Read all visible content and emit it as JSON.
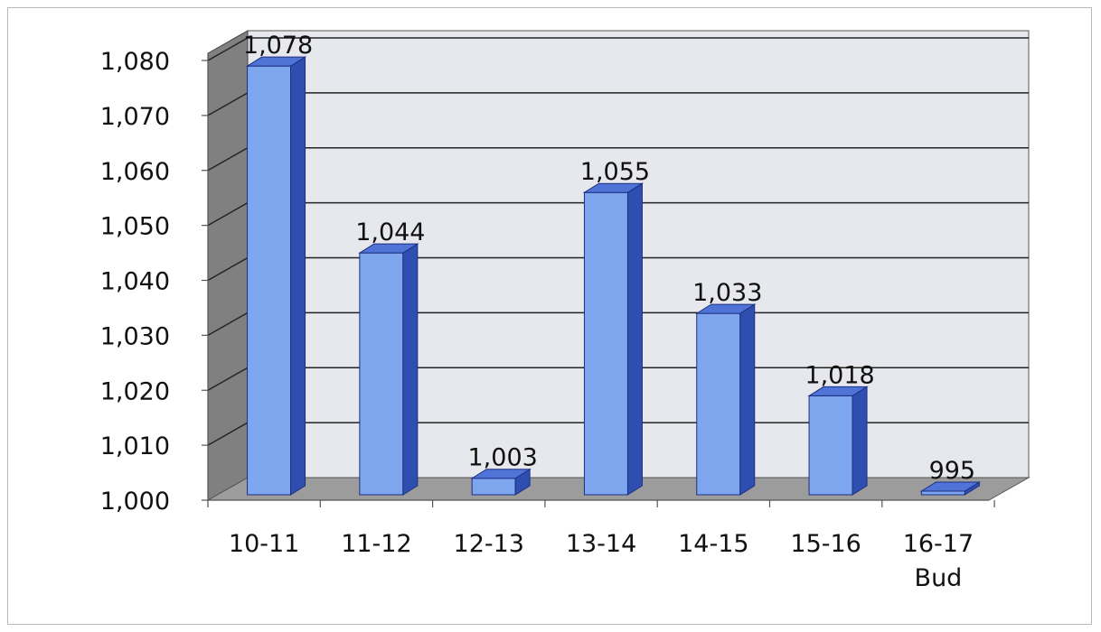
{
  "chart_data": {
    "type": "bar",
    "title": "",
    "xlabel": "",
    "ylabel": "",
    "categories": [
      [
        "10-11"
      ],
      [
        "11-12"
      ],
      [
        "12-13"
      ],
      [
        "13-14"
      ],
      [
        "14-15"
      ],
      [
        "15-16"
      ],
      [
        "16-17",
        "Bud"
      ]
    ],
    "values": [
      1078,
      1044,
      1003,
      1055,
      1033,
      1018,
      995
    ],
    "value_labels": [
      "1,078",
      "1,044",
      "1,003",
      "1,055",
      "1,033",
      "1,018",
      "995"
    ],
    "ylim": [
      1000,
      1080
    ],
    "yticks": [
      1000,
      1010,
      1020,
      1030,
      1040,
      1050,
      1060,
      1070,
      1080
    ],
    "ytick_labels": [
      "1,000",
      "1,010",
      "1,020",
      "1,030",
      "1,040",
      "1,050",
      "1,060",
      "1,070",
      "1,080"
    ],
    "grid": true,
    "three_d": true,
    "colors": {
      "bar_front": "#7ea6ee",
      "bar_side": "#2f4fb0",
      "bar_top": "#4f73d6",
      "bar_outline": "#1d2f80",
      "back_wall": "#e6e8ee",
      "side_wall": "#808080",
      "floor": "#9c9c9c",
      "gridline": "#222222"
    }
  }
}
